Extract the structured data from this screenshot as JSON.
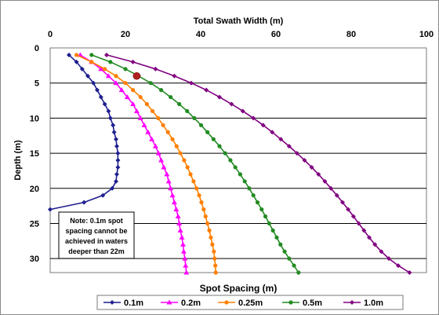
{
  "chart_data": {
    "type": "line",
    "title": "",
    "x_top_label": "Total Swath Width (m)",
    "x_bottom_label": "Spot Spacing (m)",
    "ylabel": "Depth (m)",
    "xlim": [
      0,
      100
    ],
    "ylim": [
      0,
      32
    ],
    "y_inverted": true,
    "x_ticks": [
      "0",
      "20",
      "40",
      "60",
      "80",
      "100"
    ],
    "y_ticks": [
      "0",
      "5",
      "10",
      "15",
      "20",
      "25",
      "30"
    ],
    "grid": "horizontal",
    "legend_position": "bottom",
    "note": [
      "Note:  0.1m spot",
      "spacing cannot be",
      "achieved in waters",
      "deeper than 22m"
    ],
    "highlight_point": {
      "x": 23,
      "y": 4,
      "color": "#b22222"
    },
    "series": [
      {
        "name": "0.1m",
        "color": "#1f1f8f",
        "marker": "diamond",
        "points": [
          [
            5,
            1
          ],
          [
            7,
            2
          ],
          [
            8.5,
            3
          ],
          [
            10,
            4
          ],
          [
            11.5,
            5
          ],
          [
            12.5,
            6
          ],
          [
            13.5,
            7
          ],
          [
            14.5,
            8
          ],
          [
            15.5,
            9
          ],
          [
            16,
            10
          ],
          [
            16.7,
            11
          ],
          [
            17,
            12
          ],
          [
            17.5,
            13
          ],
          [
            17.7,
            14
          ],
          [
            18,
            15
          ],
          [
            18,
            16
          ],
          [
            18,
            17
          ],
          [
            17.7,
            18
          ],
          [
            17.5,
            19
          ],
          [
            16.5,
            20
          ],
          [
            14,
            21
          ],
          [
            9,
            22
          ],
          [
            0,
            23
          ]
        ]
      },
      {
        "name": "0.2m",
        "color": "#ff00ff",
        "marker": "triangle",
        "points": [
          [
            8,
            1
          ],
          [
            11,
            2
          ],
          [
            13.5,
            3
          ],
          [
            15.5,
            4
          ],
          [
            17.5,
            5
          ],
          [
            19,
            6
          ],
          [
            20.5,
            7
          ],
          [
            22,
            8
          ],
          [
            23,
            9
          ],
          [
            24,
            10
          ],
          [
            25,
            11
          ],
          [
            26,
            12
          ],
          [
            27,
            13
          ],
          [
            28,
            14
          ],
          [
            28.8,
            15
          ],
          [
            29.5,
            16
          ],
          [
            30.2,
            17
          ],
          [
            31,
            18
          ],
          [
            31.5,
            19
          ],
          [
            32,
            20
          ],
          [
            32.5,
            21
          ],
          [
            33,
            22
          ],
          [
            33.5,
            23
          ],
          [
            34,
            24
          ],
          [
            34.3,
            25
          ],
          [
            34.6,
            26
          ],
          [
            35,
            27
          ],
          [
            35.3,
            28
          ],
          [
            35.5,
            29
          ],
          [
            35.8,
            30
          ],
          [
            36,
            31
          ],
          [
            36.2,
            32
          ]
        ]
      },
      {
        "name": "0.25m",
        "color": "#ff7f00",
        "marker": "circle",
        "points": [
          [
            7,
            1
          ],
          [
            11,
            2
          ],
          [
            14.5,
            3
          ],
          [
            17.5,
            4
          ],
          [
            20,
            5
          ],
          [
            22,
            6
          ],
          [
            24,
            7
          ],
          [
            25.7,
            8
          ],
          [
            27.2,
            9
          ],
          [
            28.7,
            10
          ],
          [
            30,
            11
          ],
          [
            31.3,
            12
          ],
          [
            32.5,
            13
          ],
          [
            33.6,
            14
          ],
          [
            34.6,
            15
          ],
          [
            35.6,
            16
          ],
          [
            36.5,
            17
          ],
          [
            37.3,
            18
          ],
          [
            38.1,
            19
          ],
          [
            38.9,
            20
          ],
          [
            39.6,
            21
          ],
          [
            40.2,
            22
          ],
          [
            40.8,
            23
          ],
          [
            41.3,
            24
          ],
          [
            41.8,
            25
          ],
          [
            42.3,
            26
          ],
          [
            42.7,
            27
          ],
          [
            43.1,
            28
          ],
          [
            43.5,
            29
          ],
          [
            43.7,
            30
          ],
          [
            43.9,
            31
          ],
          [
            44,
            32
          ]
        ]
      },
      {
        "name": "0.5m",
        "color": "#228b22",
        "marker": "circle",
        "points": [
          [
            11,
            1
          ],
          [
            16,
            2
          ],
          [
            20,
            3
          ],
          [
            23.5,
            4
          ],
          [
            26.7,
            5
          ],
          [
            29.5,
            6
          ],
          [
            32,
            7
          ],
          [
            34.3,
            8
          ],
          [
            36.4,
            9
          ],
          [
            38.3,
            10
          ],
          [
            40.1,
            11
          ],
          [
            41.8,
            12
          ],
          [
            43.4,
            13
          ],
          [
            45,
            14
          ],
          [
            46.5,
            15
          ],
          [
            47.9,
            16
          ],
          [
            49.2,
            17
          ],
          [
            50.5,
            18
          ],
          [
            51.7,
            19
          ],
          [
            52.9,
            20
          ],
          [
            54,
            21
          ],
          [
            55.1,
            22
          ],
          [
            56.2,
            23
          ],
          [
            57.2,
            24
          ],
          [
            58.2,
            25
          ],
          [
            59.2,
            26
          ],
          [
            60.2,
            27
          ],
          [
            61.2,
            28
          ],
          [
            62.3,
            29
          ],
          [
            63.5,
            30
          ],
          [
            64.8,
            31
          ],
          [
            66,
            32
          ]
        ]
      },
      {
        "name": "1.0m",
        "color": "#800080",
        "marker": "diamond",
        "points": [
          [
            15,
            1
          ],
          [
            22,
            2
          ],
          [
            28,
            3
          ],
          [
            33,
            4
          ],
          [
            37.5,
            5
          ],
          [
            41.5,
            6
          ],
          [
            45,
            7
          ],
          [
            48.2,
            8
          ],
          [
            51.2,
            9
          ],
          [
            54,
            10
          ],
          [
            56.6,
            11
          ],
          [
            59,
            12
          ],
          [
            61.3,
            13
          ],
          [
            63.5,
            14
          ],
          [
            65.6,
            15
          ],
          [
            67.6,
            16
          ],
          [
            69.5,
            17
          ],
          [
            71.3,
            18
          ],
          [
            73,
            19
          ],
          [
            74.6,
            20
          ],
          [
            76.2,
            21
          ],
          [
            77.7,
            22
          ],
          [
            79.2,
            23
          ],
          [
            80.6,
            24
          ],
          [
            82,
            25
          ],
          [
            83.4,
            26
          ],
          [
            84.8,
            27
          ],
          [
            86.3,
            28
          ],
          [
            88,
            29
          ],
          [
            90,
            30
          ],
          [
            92.5,
            31
          ],
          [
            95.5,
            32
          ]
        ]
      }
    ]
  }
}
